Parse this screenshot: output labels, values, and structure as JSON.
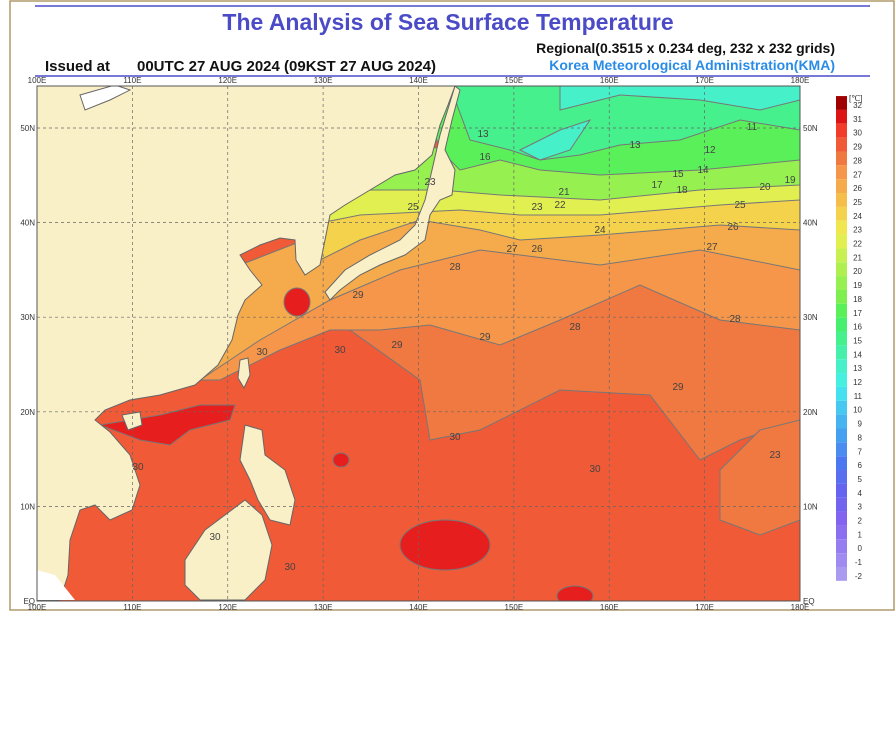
{
  "header": {
    "title": "The Analysis of Sea Surface Temperature",
    "issued_label": "Issued at",
    "issued_time": "00UTC 27 AUG 2024 (09KST 27 AUG 2024)",
    "regional": "Regional(0.3515 x 0.234 deg, 232 x 232 grids)",
    "agency": "Korea Meteorological Administration(KMA)"
  },
  "map": {
    "lon_labels": [
      "100E",
      "110E",
      "120E",
      "130E",
      "140E",
      "150E",
      "160E",
      "170E",
      "180E"
    ],
    "lat_labels": [
      "50N",
      "40N",
      "30N",
      "20N",
      "10N",
      "EQ"
    ],
    "contour_labels": [
      "13",
      "16",
      "13",
      "11",
      "12",
      "15",
      "14",
      "17",
      "18",
      "20",
      "19",
      "21",
      "22",
      "23",
      "25",
      "23",
      "24",
      "25",
      "26",
      "27",
      "27",
      "26",
      "28",
      "28",
      "28",
      "29",
      "29",
      "29",
      "30",
      "30",
      "30",
      "30",
      "30",
      "30",
      "30",
      "29",
      "23"
    ]
  },
  "colorbar": {
    "unit": "[℃]",
    "labels": [
      32,
      31,
      30,
      29,
      28,
      27,
      26,
      25,
      24,
      23,
      22,
      21,
      20,
      19,
      18,
      17,
      16,
      15,
      14,
      13,
      12,
      11,
      10,
      9,
      8,
      7,
      6,
      5,
      4,
      3,
      2,
      1,
      0,
      -1,
      -2
    ],
    "colors": [
      "#a00000",
      "#dc1414",
      "#f03c28",
      "#f05a37",
      "#f07841",
      "#f5964b",
      "#f5aa4b",
      "#f5be4b",
      "#f5d24b",
      "#f0e650",
      "#e1f050",
      "#c8f050",
      "#aff050",
      "#96f050",
      "#7df050",
      "#5af05a",
      "#46f06e",
      "#46f08c",
      "#46f0aa",
      "#46f0c8",
      "#46f0e1",
      "#46e1f0",
      "#46c8f0",
      "#46b4f0",
      "#46a0f0",
      "#4b8cf0",
      "#4b78f0",
      "#5a6ef0",
      "#6464f0",
      "#7364f0",
      "#8264f0",
      "#8c6ef0",
      "#967df0",
      "#a08cf0",
      "#aa9bf0"
    ]
  }
}
